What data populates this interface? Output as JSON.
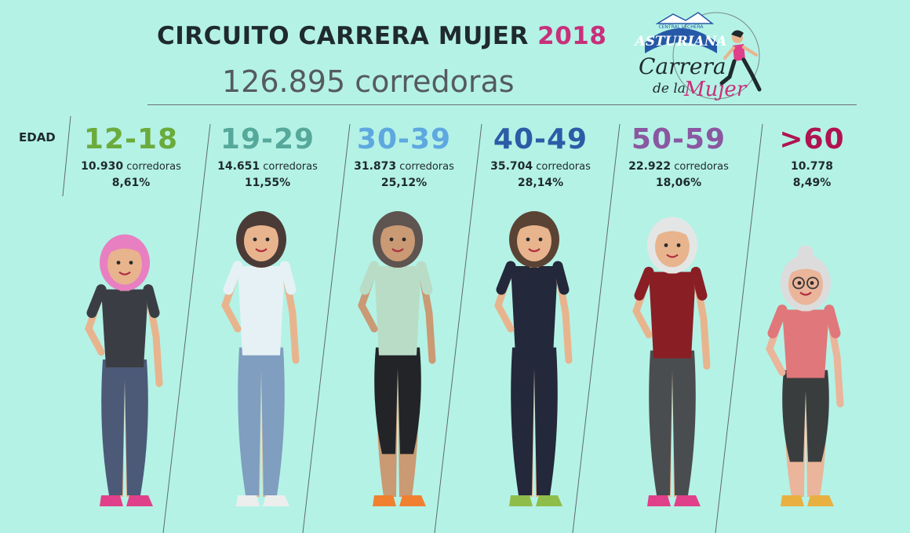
{
  "header": {
    "title_main": "CIRCUITO CARRERA MUJER",
    "title_year": "2018",
    "subtitle": "126.895 corredoras"
  },
  "axis_label": "EDAD",
  "logo": {
    "top_text": "CENTRAL LECHERA",
    "brand": "ASTURIANA",
    "line1": "Carrera",
    "line2": "de la",
    "line3": "Mujer"
  },
  "colors": {
    "background": "#b4f2e6",
    "accent": "#c8307a"
  },
  "chart_data": {
    "type": "table",
    "unit_label": "corredoras",
    "categories": [
      "12-18",
      "19-29",
      "30-39",
      "40-49",
      "50-59",
      ">60"
    ],
    "counts_text": [
      "10.930",
      "14.651",
      "31.873",
      "35.704",
      "22.922",
      "10.778"
    ],
    "counts": [
      10930,
      14651,
      31873,
      35704,
      22922,
      10778
    ],
    "percent_text": [
      "8,61%",
      "11,55%",
      "25,12%",
      "28,14%",
      "18,06%",
      "8,49%"
    ],
    "percents": [
      8.61,
      11.55,
      25.12,
      28.14,
      18.06,
      8.49
    ],
    "show_unit": [
      true,
      true,
      true,
      true,
      true,
      false
    ],
    "category_colors": [
      "#6bab3c",
      "#56a89a",
      "#5ea8e0",
      "#2d5ba6",
      "#8a57a0",
      "#b0134f"
    ],
    "total": 126895
  }
}
